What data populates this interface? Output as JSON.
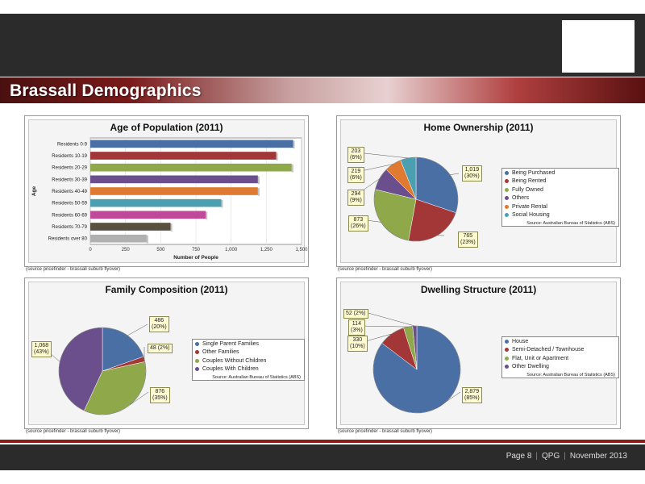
{
  "page": {
    "title": "Brassall Demographics",
    "footer": {
      "page": "Page 8",
      "company": "QPG",
      "date": "November 2013"
    }
  },
  "colors": {
    "blue": "#4a6fa5",
    "red": "#a33636",
    "green": "#8fa84a",
    "purple": "#6a4f8c",
    "orange": "#e07a30",
    "teal": "#4a9fb0",
    "pink": "#c04a9a",
    "dark": "#5a5040",
    "grey": "#b0b0b0"
  },
  "panels": {
    "age": {
      "source": "(source pricefinder - brassall suburb flyover)"
    },
    "home": {
      "source": "(source pricefinder - brassall suburb flyover)"
    },
    "family": {
      "source": "(source pricefinder - brassall suburb flyover)"
    },
    "dwelling": {
      "source": "(source pricefinder - brassall suburb flyover)"
    }
  },
  "chart_data": [
    {
      "type": "bar",
      "orientation": "horizontal",
      "title": "Age of Population (2011)",
      "xlabel": "Number of People",
      "ylabel": "Age",
      "categories": [
        "Residents 0-9",
        "Residents 10-19",
        "Residents 20-29",
        "Residents 30-39",
        "Residents 40-49",
        "Residents 50-59",
        "Residents 60-69",
        "Residents 70-79",
        "Residents over 80"
      ],
      "values": [
        1440,
        1320,
        1430,
        1190,
        1190,
        930,
        820,
        570,
        400
      ],
      "colors": [
        "#4a6fa5",
        "#a33636",
        "#8fa84a",
        "#6a4f8c",
        "#e07a30",
        "#4a9fb0",
        "#c04a9a",
        "#5a5040",
        "#b0b0b0"
      ],
      "xlim": [
        0,
        1500
      ],
      "xticks": [
        "0",
        "250",
        "500",
        "750",
        "1,000",
        "1,250",
        "1,500"
      ],
      "grid": true
    },
    {
      "type": "pie",
      "title": "Home Ownership (2011)",
      "labels": [
        "Being Purchased",
        "Being Rented",
        "Fully Owned",
        "Others",
        "Private Rental",
        "Social Housing"
      ],
      "values": [
        1019,
        765,
        873,
        294,
        219,
        203
      ],
      "percents": [
        "30%",
        "23%",
        "26%",
        "9%",
        "6%",
        "6%"
      ],
      "display": [
        "1,019",
        "765",
        "873",
        "294",
        "219",
        "203"
      ],
      "colors": [
        "#4a6fa5",
        "#a33636",
        "#8fa84a",
        "#6a4f8c",
        "#e07a30",
        "#4a9fb0"
      ],
      "legend_source": "Source: Australian Bureau of Statistics (ABS)"
    },
    {
      "type": "pie",
      "title": "Family Composition (2011)",
      "labels": [
        "Single Parent Families",
        "Other Families",
        "Couples Without Children",
        "Couples With Children"
      ],
      "values": [
        486,
        48,
        876,
        1068
      ],
      "percents": [
        "20%",
        "2%",
        "35%",
        "43%"
      ],
      "display": [
        "486",
        "48",
        "876",
        "1,068"
      ],
      "colors": [
        "#4a6fa5",
        "#a33636",
        "#8fa84a",
        "#6a4f8c"
      ],
      "legend_source": "Source: Australian Bureau of Statistics (ABS)"
    },
    {
      "type": "pie",
      "title": "Dwelling Structure (2011)",
      "labels": [
        "House",
        "Semi-Detached / Townhouse",
        "Flat, Unit or Apartment",
        "Other Dwelling"
      ],
      "values": [
        2879,
        330,
        114,
        52
      ],
      "percents": [
        "85%",
        "10%",
        "3%",
        "2%"
      ],
      "display": [
        "2,879",
        "330",
        "114",
        "52"
      ],
      "colors": [
        "#4a6fa5",
        "#a33636",
        "#8fa84a",
        "#6a4f8c"
      ],
      "legend_source": "Source: Australian Bureau of Statistics (ABS)"
    }
  ]
}
